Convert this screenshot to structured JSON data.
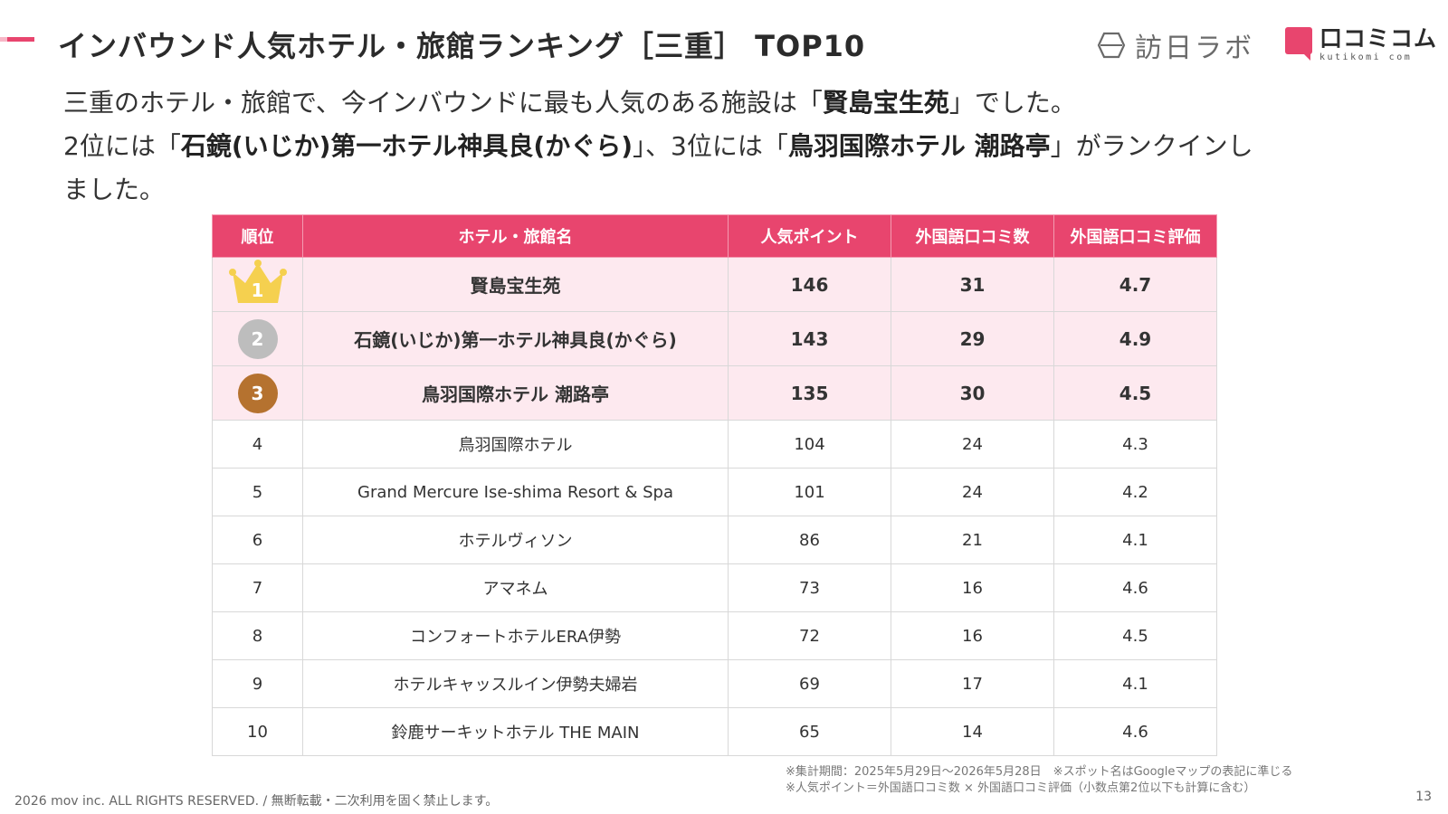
{
  "title": "インバウンド人気ホテル・旅館ランキング［三重］ TOP10",
  "brands": {
    "primary": "訪日ラボ",
    "secondary_jp": "口コミコム",
    "secondary_en": "kutikomi com"
  },
  "lead": {
    "l1_a": "三重のホテル・旅館で、今インバウンドに最も人気のある施設は「",
    "l1_b": "賢島宝生苑",
    "l1_c": "」でした。",
    "l2_a": "2位には「",
    "l2_b": "石鏡(いじか)第一ホテル神具良(かぐら)",
    "l2_c": "」、3位には「",
    "l2_d": "鳥羽国際ホテル 潮路亭",
    "l2_e": "」がランクインし",
    "l3": "ました。"
  },
  "table": {
    "headers": [
      "順位",
      "ホテル・旅館名",
      "人気ポイント",
      "外国語口コミ数",
      "外国語口コミ評価"
    ],
    "rows": [
      {
        "rank": "1",
        "name": "賢島宝生苑",
        "points": "146",
        "count": "31",
        "rating": "4.7"
      },
      {
        "rank": "2",
        "name": "石鏡(いじか)第一ホテル神具良(かぐら)",
        "points": "143",
        "count": "29",
        "rating": "4.9"
      },
      {
        "rank": "3",
        "name": "鳥羽国際ホテル 潮路亭",
        "points": "135",
        "count": "30",
        "rating": "4.5"
      },
      {
        "rank": "4",
        "name": "鳥羽国際ホテル",
        "points": "104",
        "count": "24",
        "rating": "4.3"
      },
      {
        "rank": "5",
        "name": "Grand Mercure Ise-shima Resort & Spa",
        "points": "101",
        "count": "24",
        "rating": "4.2"
      },
      {
        "rank": "6",
        "name": "ホテルヴィソン",
        "points": "86",
        "count": "21",
        "rating": "4.1"
      },
      {
        "rank": "7",
        "name": "アマネム",
        "points": "73",
        "count": "16",
        "rating": "4.6"
      },
      {
        "rank": "8",
        "name": "コンフォートホテルERA伊勢",
        "points": "72",
        "count": "16",
        "rating": "4.5"
      },
      {
        "rank": "9",
        "name": "ホテルキャッスルイン伊勢夫婦岩",
        "points": "69",
        "count": "17",
        "rating": "4.1"
      },
      {
        "rank": "10",
        "name": "鈴鹿サーキットホテル THE MAIN",
        "points": "65",
        "count": "14",
        "rating": "4.6"
      }
    ]
  },
  "notes": {
    "line1": "※集計期間：2025年5月29日〜2026年5月28日　※スポット名はGoogleマップの表記に準じる",
    "line2": "※人気ポイント＝外国語口コミ数 × 外国語口コミ評価（小数点第2位以下も計算に含む）"
  },
  "footer": "2026 mov inc. ALL RIGHTS RESERVED. / 無断転載・二次利用を固く禁止します。",
  "page_number": "13",
  "colors": {
    "accent": "#e8456e",
    "top_row_bg": "#fde9ef",
    "gold": "#f5d04f",
    "silver": "#bdbdbd",
    "bronze": "#b5722f"
  }
}
